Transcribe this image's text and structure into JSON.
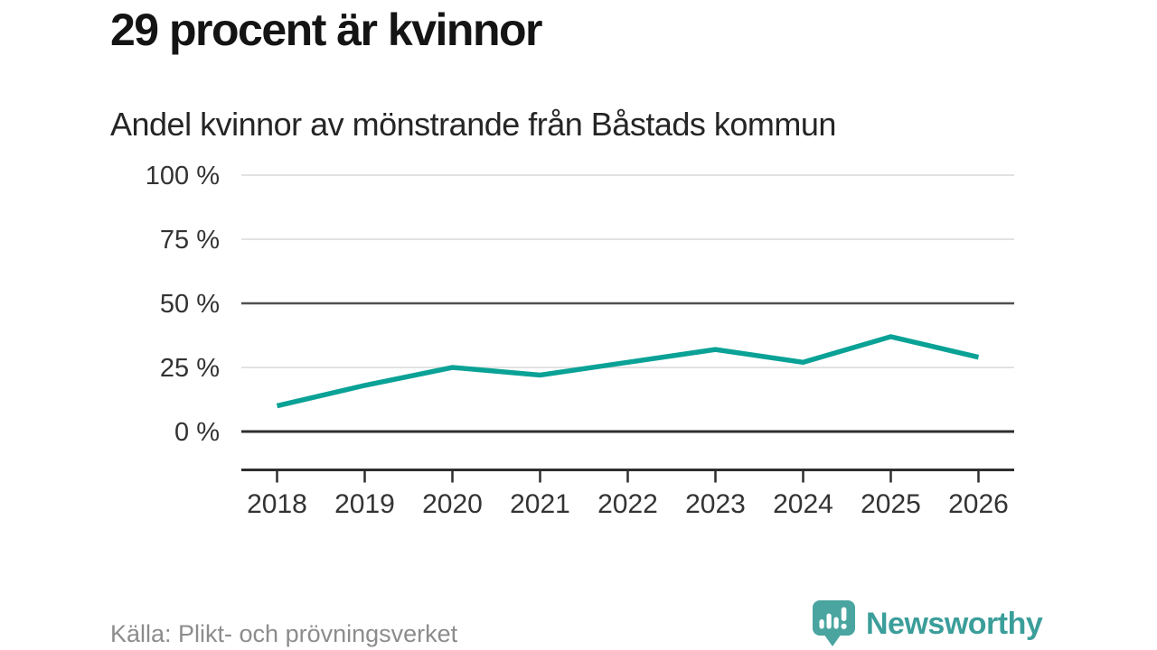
{
  "chart_data": {
    "type": "line",
    "title": "29 procent är kvinnor",
    "subtitle": "Andel kvinnor av mönstrande från Båstads kommun",
    "x": [
      2018,
      2019,
      2020,
      2021,
      2022,
      2023,
      2024,
      2025,
      2026
    ],
    "series": [
      {
        "name": "Andel kvinnor av mönstrande",
        "values": [
          10,
          18,
          25,
          22,
          27,
          32,
          27,
          37,
          29
        ]
      }
    ],
    "unit": "%",
    "ylim": [
      0,
      100
    ],
    "yticks": [
      0,
      25,
      50,
      75,
      100
    ],
    "ytick_labels": [
      "0 %",
      "25 %",
      "50 %",
      "75 %",
      "100 %"
    ],
    "reference_line": 50,
    "grid": true,
    "legend": "none",
    "line_color": "#0aa296"
  },
  "footer": {
    "source": "Källa: Plikt- och prövningsverket",
    "brand": "Newsworthy"
  },
  "colors": {
    "accent": "#0aa296",
    "logo_bubble": "#4aa5a0",
    "logo_text": "#3b9e9a",
    "grid_light": "#e2e2e2",
    "grid_mid": "#4f4f4f",
    "axis_dark": "#2e2e2e",
    "tick_text": "#333333",
    "muted_text": "#8c8c8c"
  }
}
